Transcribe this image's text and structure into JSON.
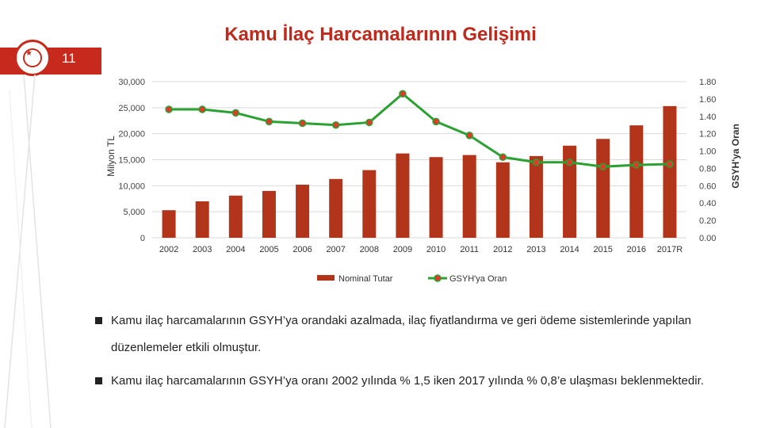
{
  "header": {
    "title": "Kamu İlaç Harcamalarının Gelişimi",
    "page_number": "11"
  },
  "colors": {
    "accent": "#c72a1c",
    "bar": "#b2341a",
    "line": "#2aa132",
    "marker": "#e03a2a"
  },
  "chart_data": {
    "type": "bar",
    "categories": [
      "2002",
      "2003",
      "2004",
      "2005",
      "2006",
      "2007",
      "2008",
      "2009",
      "2010",
      "2011",
      "2012",
      "2013",
      "2014",
      "2015",
      "2016",
      "2017R"
    ],
    "series": [
      {
        "name": "Nominal Tutar",
        "type": "bar",
        "axis": "left",
        "values": [
          5300,
          7000,
          8100,
          9000,
          10200,
          11300,
          13000,
          16200,
          15500,
          15900,
          14500,
          15700,
          17700,
          19000,
          21600,
          25300
        ]
      },
      {
        "name": "GSYH'ya Oran",
        "type": "line",
        "axis": "right",
        "values": [
          1.48,
          1.48,
          1.44,
          1.34,
          1.32,
          1.3,
          1.33,
          1.66,
          1.34,
          1.18,
          0.93,
          0.87,
          0.87,
          0.82,
          0.84,
          0.85
        ]
      }
    ],
    "ylabel_left": "Milyon TL",
    "ylabel_right": "GSYH'ya Oran",
    "ylim_left": [
      0,
      30000
    ],
    "ylim_right": [
      0,
      1.8
    ],
    "yticks_left": [
      "0",
      "5,000",
      "10,000",
      "15,000",
      "20,000",
      "25,000",
      "30,000"
    ],
    "yticks_right": [
      "0.00",
      "0.20",
      "0.40",
      "0.60",
      "0.80",
      "1.00",
      "1.20",
      "1.40",
      "1.60",
      "1.80"
    ],
    "legend": [
      "Nominal Tutar",
      "GSYH'ya Oran"
    ],
    "legend_position": "bottom",
    "grid": "horizontal"
  },
  "bullets": [
    "Kamu ilaç harcamalarının GSYH’ya orandaki azalmada, ilaç fiyatlandırma ve geri ödeme sistemlerinde yapılan düzenlemeler etkili olmuştur.",
    "Kamu ilaç harcamalarının GSYH’ya oranı 2002 yılında % 1,5 iken 2017 yılında % 0,8’e ulaşması beklenmektedir."
  ]
}
